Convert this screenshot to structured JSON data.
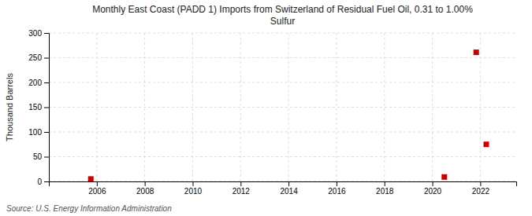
{
  "chart_data": {
    "type": "scatter",
    "title": "Monthly East Coast (PADD 1) Imports from Switzerland of Residual Fuel Oil, 0.31 to 1.00%\nSulfur",
    "ylabel": "Thousand Barrels",
    "annotations": [
      "Source: U.S. Energy Information Administration"
    ],
    "x": [
      2005.75,
      2020.5,
      2021.83,
      2022.25
    ],
    "values": [
      5,
      9,
      261,
      75
    ],
    "color": "#cc0000",
    "marker": "square",
    "xlim": [
      2004.0,
      2023.5
    ],
    "ylim": [
      0,
      300
    ],
    "xticks": [
      2006,
      2008,
      2010,
      2012,
      2014,
      2016,
      2018,
      2020,
      2022
    ],
    "yticks": [
      0,
      50,
      100,
      150,
      200,
      250,
      300
    ],
    "grid": true
  }
}
